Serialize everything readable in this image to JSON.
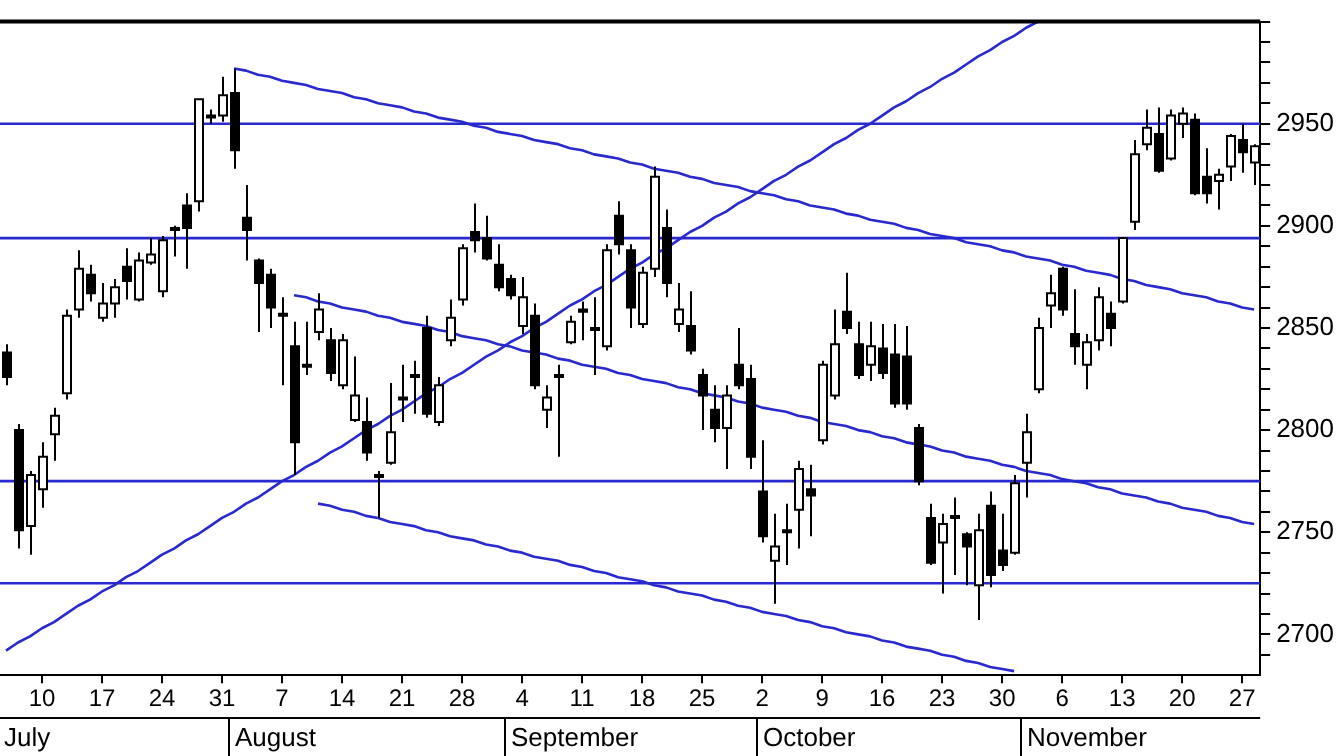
{
  "chart_data": {
    "type": "candlestick",
    "categories": [
      null,
      null,
      null,
      "10",
      null,
      null,
      null,
      null,
      "17",
      null,
      null,
      null,
      null,
      "24",
      null,
      null,
      null,
      null,
      "31",
      null,
      null,
      null,
      null,
      "7",
      null,
      null,
      null,
      null,
      "14",
      null,
      null,
      null,
      null,
      "21",
      null,
      null,
      null,
      null,
      "28",
      null,
      null,
      null,
      null,
      "4",
      null,
      null,
      null,
      null,
      "11",
      null,
      null,
      null,
      null,
      "18",
      null,
      null,
      null,
      null,
      "25",
      null,
      null,
      null,
      null,
      "2",
      null,
      null,
      null,
      null,
      "9",
      null,
      null,
      null,
      null,
      "16",
      null,
      null,
      null,
      null,
      "23",
      null,
      null,
      null,
      null,
      "30",
      null,
      null,
      null,
      null,
      "6",
      null,
      null,
      null,
      null,
      "13",
      null,
      null,
      null,
      null,
      "20",
      null,
      null,
      null,
      null,
      "27",
      null
    ],
    "ohlc": [
      [
        2838,
        2842,
        2822,
        2826
      ],
      [
        2800,
        2803,
        2742,
        2751
      ],
      [
        2753,
        2780,
        2739,
        2778
      ],
      [
        2771,
        2794,
        2762,
        2787
      ],
      [
        2798,
        2811,
        2785,
        2807
      ],
      [
        2818,
        2859,
        2815,
        2856
      ],
      [
        2859,
        2888,
        2855,
        2879
      ],
      [
        2876,
        2881,
        2863,
        2867
      ],
      [
        2855,
        2872,
        2853,
        2862
      ],
      [
        2862,
        2874,
        2855,
        2870
      ],
      [
        2880,
        2889,
        2864,
        2873
      ],
      [
        2864,
        2887,
        2863,
        2883
      ],
      [
        2882,
        2894,
        2881,
        2886
      ],
      [
        2868,
        2895,
        2865,
        2893
      ],
      [
        2899,
        2900,
        2885,
        2898
      ],
      [
        2910,
        2916,
        2879,
        2899
      ],
      [
        2912,
        2962,
        2907,
        2962
      ],
      [
        2954,
        2957,
        2950,
        2953
      ],
      [
        2954,
        2973,
        2951,
        2964
      ],
      [
        2965,
        2977,
        2928,
        2937
      ],
      [
        2904,
        2920,
        2883,
        2898
      ],
      [
        2883,
        2884,
        2848,
        2872
      ],
      [
        2876,
        2879,
        2850,
        2860
      ],
      [
        2857,
        2865,
        2822,
        2856
      ],
      [
        2841,
        2853,
        2778,
        2794
      ],
      [
        2832,
        2853,
        2827,
        2831
      ],
      [
        2848,
        2867,
        2844,
        2859
      ],
      [
        2844,
        2850,
        2824,
        2828
      ],
      [
        2822,
        2847,
        2820,
        2844
      ],
      [
        2805,
        2836,
        2804,
        2817
      ],
      [
        2804,
        2816,
        2785,
        2789
      ],
      [
        2778,
        2780,
        2757,
        2777
      ],
      [
        2784,
        2823,
        2783,
        2799
      ],
      [
        2816,
        2832,
        2804,
        2815
      ],
      [
        2826,
        2834,
        2808,
        2827
      ],
      [
        2850,
        2856,
        2806,
        2808
      ],
      [
        2804,
        2826,
        2802,
        2822
      ],
      [
        2844,
        2864,
        2841,
        2855
      ],
      [
        2864,
        2891,
        2861,
        2889
      ],
      [
        2897,
        2911,
        2887,
        2893
      ],
      [
        2894,
        2905,
        2883,
        2884
      ],
      [
        2881,
        2891,
        2868,
        2870
      ],
      [
        2874,
        2876,
        2864,
        2866
      ],
      [
        2851,
        2875,
        2847,
        2865
      ],
      [
        2856,
        2862,
        2820,
        2822
      ],
      [
        2810,
        2822,
        2801,
        2816
      ],
      [
        2826,
        2832,
        2787,
        2827
      ],
      [
        2843,
        2856,
        2842,
        2853
      ],
      [
        2859,
        2863,
        2844,
        2858
      ],
      [
        2850,
        2865,
        2827,
        2849
      ],
      [
        2841,
        2891,
        2839,
        2888
      ],
      [
        2905,
        2912,
        2886,
        2891
      ],
      [
        2888,
        2891,
        2850,
        2860
      ],
      [
        2852,
        2880,
        2850,
        2877
      ],
      [
        2879,
        2929,
        2875,
        2924
      ],
      [
        2899,
        2908,
        2865,
        2872
      ],
      [
        2852,
        2872,
        2848,
        2859
      ],
      [
        2851,
        2868,
        2837,
        2839
      ],
      [
        2827,
        2830,
        2800,
        2817
      ],
      [
        2810,
        2822,
        2794,
        2801
      ],
      [
        2801,
        2822,
        2781,
        2817
      ],
      [
        2832,
        2850,
        2820,
        2822
      ],
      [
        2825,
        2832,
        2781,
        2787
      ],
      [
        2770,
        2795,
        2745,
        2748
      ],
      [
        2736,
        2759,
        2715,
        2743
      ],
      [
        2751,
        2764,
        2734,
        2750
      ],
      [
        2761,
        2785,
        2742,
        2781
      ],
      [
        2771,
        2783,
        2748,
        2768
      ],
      [
        2795,
        2834,
        2793,
        2832
      ],
      [
        2817,
        2859,
        2815,
        2842
      ],
      [
        2858,
        2877,
        2847,
        2850
      ],
      [
        2842,
        2853,
        2825,
        2827
      ],
      [
        2832,
        2853,
        2824,
        2841
      ],
      [
        2840,
        2852,
        2825,
        2828
      ],
      [
        2837,
        2852,
        2811,
        2813
      ],
      [
        2836,
        2851,
        2810,
        2813
      ],
      [
        2801,
        2803,
        2773,
        2775
      ],
      [
        2757,
        2764,
        2734,
        2735
      ],
      [
        2745,
        2759,
        2720,
        2754
      ],
      [
        2758,
        2767,
        2729,
        2757
      ],
      [
        2749,
        2750,
        2724,
        2743
      ],
      [
        2724,
        2759,
        2707,
        2751
      ],
      [
        2763,
        2770,
        2723,
        2729
      ],
      [
        2741,
        2759,
        2731,
        2734
      ],
      [
        2740,
        2778,
        2739,
        2774
      ],
      [
        2784,
        2808,
        2767,
        2799
      ],
      [
        2820,
        2855,
        2818,
        2850
      ],
      [
        2861,
        2876,
        2850,
        2867
      ],
      [
        2879,
        2880,
        2856,
        2859
      ],
      [
        2847,
        2869,
        2832,
        2841
      ],
      [
        2832,
        2847,
        2820,
        2843
      ],
      [
        2844,
        2870,
        2839,
        2865
      ],
      [
        2857,
        2863,
        2841,
        2850
      ],
      [
        2863,
        2894,
        2862,
        2894
      ],
      [
        2902,
        2942,
        2898,
        2935
      ],
      [
        2940,
        2957,
        2937,
        2948
      ],
      [
        2945,
        2958,
        2926,
        2927
      ],
      [
        2933,
        2957,
        2932,
        2954
      ],
      [
        2950,
        2958,
        2943,
        2955
      ],
      [
        2952,
        2955,
        2915,
        2916
      ],
      [
        2924,
        2938,
        2911,
        2916
      ],
      [
        2922,
        2928,
        2908,
        2925
      ],
      [
        2929,
        2945,
        2922,
        2944
      ],
      [
        2942,
        2950,
        2926,
        2936
      ],
      [
        2931,
        2940,
        2920,
        2939
      ]
    ],
    "series": [
      {
        "type": "line",
        "color": "#2929d0",
        "values": [
          2692,
          2696,
          2699,
          2703,
          2706,
          2710,
          2714,
          2717,
          2721,
          2724,
          2728,
          2731,
          2735,
          2739,
          2742,
          2746,
          2749,
          2753,
          2757,
          2760,
          2764,
          2767,
          2771,
          2775,
          2778,
          2782,
          2785,
          2789,
          2792,
          2796,
          2800,
          2803,
          2807,
          2810,
          2814,
          2818,
          2821,
          2825,
          2828,
          2832,
          2836,
          2839,
          2843,
          2846,
          2850,
          2853,
          2857,
          2861,
          2864,
          2868,
          2871,
          2875,
          2879,
          2882,
          2886,
          2889,
          2893,
          2897,
          2900,
          2904,
          2907,
          2911,
          2914,
          2918,
          2922,
          2925,
          2929,
          2932,
          2936,
          2940,
          2943,
          2947,
          2950,
          2954,
          2958,
          2961,
          2965,
          2968,
          2972,
          2975,
          2979,
          2983,
          2986,
          2990,
          2993,
          2997,
          3000,
          null,
          null,
          null,
          null,
          null,
          null,
          null,
          null,
          null,
          null,
          null,
          null,
          null,
          null,
          null,
          null,
          null,
          null
        ]
      },
      {
        "type": "line",
        "color": "#2929d0",
        "values": [
          null,
          null,
          null,
          null,
          null,
          null,
          null,
          null,
          null,
          null,
          null,
          null,
          null,
          null,
          null,
          null,
          null,
          null,
          null,
          2977,
          2976,
          2974,
          2973,
          2971,
          2970,
          2969,
          2967,
          2966,
          2965,
          2963,
          2962,
          2960,
          2959,
          2958,
          2956,
          2955,
          2953,
          2952,
          2951,
          2949,
          2948,
          2946,
          2945,
          2944,
          2942,
          2941,
          2940,
          2938,
          2937,
          2935,
          2934,
          2933,
          2931,
          2930,
          2928,
          2927,
          2926,
          2924,
          2923,
          2921,
          2920,
          2919,
          2917,
          2916,
          2915,
          2913,
          2912,
          2910,
          2909,
          2908,
          2906,
          2905,
          2903,
          2902,
          2901,
          2899,
          2898,
          2896,
          2895,
          2894,
          2892,
          2891,
          2890,
          2888,
          2887,
          2885,
          2884,
          2883,
          2881,
          2880,
          2878,
          2877,
          2876,
          2874,
          2873,
          2871,
          2870,
          2869,
          2867,
          2866,
          2865,
          2863,
          2862,
          2860,
          2859
        ]
      },
      {
        "type": "line",
        "color": "#2929d0",
        "values": [
          null,
          null,
          null,
          null,
          null,
          null,
          null,
          null,
          null,
          null,
          null,
          null,
          null,
          null,
          null,
          null,
          null,
          null,
          null,
          null,
          null,
          null,
          null,
          null,
          2866,
          2865,
          2863,
          2862,
          2860,
          2859,
          2858,
          2856,
          2855,
          2853,
          2852,
          2851,
          2849,
          2848,
          2846,
          2845,
          2844,
          2842,
          2841,
          2839,
          2838,
          2837,
          2835,
          2834,
          2832,
          2831,
          2830,
          2828,
          2827,
          2825,
          2824,
          2823,
          2821,
          2820,
          2818,
          2817,
          2816,
          2814,
          2813,
          2811,
          2810,
          2809,
          2807,
          2806,
          2804,
          2803,
          2802,
          2800,
          2799,
          2797,
          2796,
          2794,
          2793,
          2792,
          2790,
          2789,
          2787,
          2786,
          2785,
          2783,
          2782,
          2780,
          2779,
          2778,
          2776,
          2775,
          2774,
          2772,
          2771,
          2769,
          2768,
          2767,
          2765,
          2764,
          2762,
          2761,
          2760,
          2758,
          2757,
          2755,
          2754
        ]
      },
      {
        "type": "line",
        "color": "#2929d0",
        "values": [
          null,
          null,
          null,
          null,
          null,
          null,
          null,
          null,
          null,
          null,
          null,
          null,
          null,
          null,
          null,
          null,
          null,
          null,
          null,
          null,
          null,
          null,
          null,
          null,
          null,
          null,
          2764,
          2763,
          2761,
          2760,
          2758,
          2757,
          2755,
          2754,
          2753,
          2751,
          2750,
          2748,
          2747,
          2746,
          2744,
          2743,
          2741,
          2740,
          2738,
          2737,
          2736,
          2734,
          2733,
          2731,
          2730,
          2728,
          2727,
          2726,
          2724,
          2723,
          2721,
          2720,
          2719,
          2717,
          2716,
          2714,
          2713,
          2711,
          2710,
          2709,
          2707,
          2706,
          2704,
          2703,
          2701,
          2700,
          2699,
          2697,
          2696,
          2694,
          2693,
          2692,
          2690,
          2689,
          2687,
          2686,
          2684,
          2683,
          2682,
          null,
          null,
          null,
          null,
          null,
          null,
          null,
          null,
          null,
          null,
          null,
          null,
          null,
          null,
          null,
          null,
          null,
          null,
          null,
          null
        ]
      }
    ],
    "ref_lines": [
      {
        "axis": "y",
        "value": 2950,
        "color": "#2929d0"
      },
      {
        "axis": "y",
        "value": 2894,
        "color": "#2929d0"
      },
      {
        "axis": "y",
        "value": 2775,
        "color": "#2929d0"
      },
      {
        "axis": "y",
        "value": 2725,
        "color": "#2929d0"
      }
    ],
    "ylim": [
      2680,
      3000
    ],
    "yticks": [
      {
        "value": 2690,
        "label": null
      },
      2700,
      {
        "value": 2710,
        "label": null
      },
      {
        "value": 2720,
        "label": null
      },
      {
        "value": 2730,
        "label": null
      },
      {
        "value": 2740,
        "label": null
      },
      2750,
      {
        "value": 2760,
        "label": null
      },
      {
        "value": 2770,
        "label": null
      },
      {
        "value": 2780,
        "label": null
      },
      {
        "value": 2790,
        "label": null
      },
      2800,
      {
        "value": 2810,
        "label": null
      },
      {
        "value": 2820,
        "label": null
      },
      {
        "value": 2830,
        "label": null
      },
      {
        "value": 2840,
        "label": null
      },
      2850,
      {
        "value": 2860,
        "label": null
      },
      {
        "value": 2870,
        "label": null
      },
      {
        "value": 2880,
        "label": null
      },
      {
        "value": 2890,
        "label": null
      },
      2900,
      {
        "value": 2910,
        "label": null
      },
      {
        "value": 2920,
        "label": null
      },
      {
        "value": 2930,
        "label": null
      },
      {
        "value": 2940,
        "label": null
      },
      2950,
      {
        "value": 2960,
        "label": null
      },
      {
        "value": 2970,
        "label": null
      },
      {
        "value": 2980,
        "label": null
      },
      {
        "value": 2990,
        "label": null
      },
      {
        "value": 3000,
        "label": null
      }
    ],
    "annotations": [
      "July",
      "August",
      "September",
      "October",
      "November"
    ]
  }
}
